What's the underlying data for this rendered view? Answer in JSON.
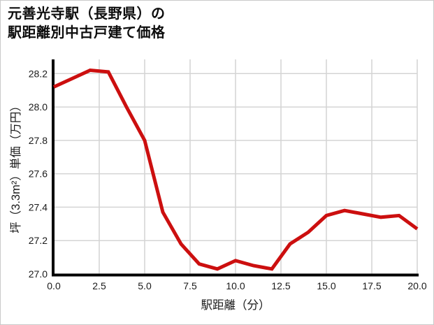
{
  "figure": {
    "title_line1": "元善光寺駅（長野県）の",
    "title_line2": "駅距離別中古戸建て価格"
  },
  "chart_data": {
    "type": "line",
    "title": "元善光寺駅（長野県）の駅距離別中古戸建て価格",
    "xlabel": "駅距離（分）",
    "ylabel": "坪（3.3m²）単価（万円）",
    "x": [
      0,
      1,
      2,
      3,
      4,
      5,
      6,
      7,
      8,
      9,
      10,
      11,
      12,
      13,
      14,
      15,
      16,
      17,
      18,
      19,
      20
    ],
    "values": [
      28.12,
      28.17,
      28.22,
      28.21,
      28.0,
      27.8,
      27.37,
      27.18,
      27.06,
      27.03,
      27.08,
      27.05,
      27.03,
      27.18,
      27.25,
      27.35,
      27.38,
      27.36,
      27.34,
      27.35,
      27.27
    ],
    "x_tick_values": [
      0,
      2.5,
      5,
      7.5,
      10,
      12.5,
      15,
      17.5,
      20
    ],
    "x_tick_labels": [
      "0.0",
      "2.5",
      "5.0",
      "7.5",
      "10.0",
      "12.5",
      "15.0",
      "17.5",
      "20.0"
    ],
    "y_tick_values": [
      27.0,
      27.2,
      27.4,
      27.6,
      27.8,
      28.0,
      28.2
    ],
    "y_tick_labels": [
      "27.0",
      "27.2",
      "27.4",
      "27.6",
      "27.8",
      "28.0",
      "28.2"
    ],
    "xlim": [
      0,
      20
    ],
    "ylim": [
      27.0,
      28.285
    ],
    "grid": true,
    "legend": "none",
    "line_color": "#cc0f0f",
    "grid_color": "#d4d4d4",
    "axis_color": "#000000",
    "text_color": "#1a1a1a",
    "background": "#ffffff"
  }
}
